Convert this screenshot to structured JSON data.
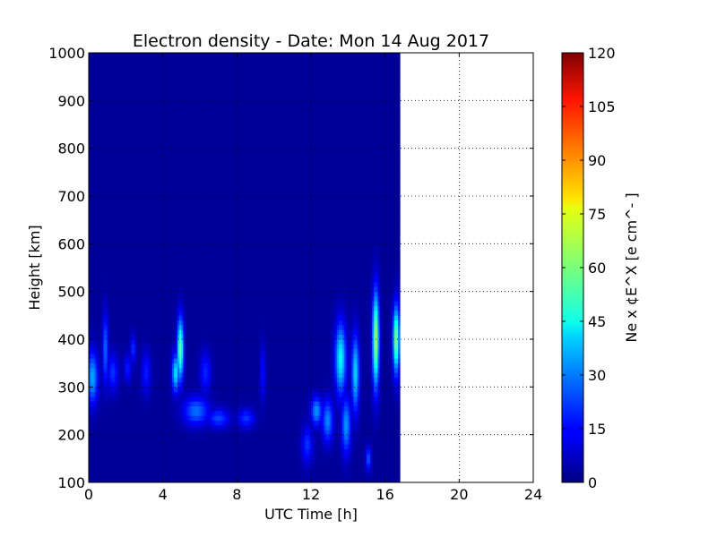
{
  "chart_data": {
    "type": "heatmap",
    "title": "Electron density - Date: Mon 14 Aug 2017",
    "xlabel": "UTC Time [h]",
    "ylabel": "Height [km]",
    "xlim": [
      0,
      24
    ],
    "ylim": [
      100,
      1000
    ],
    "x_ticks": [
      0,
      4,
      8,
      12,
      16,
      20,
      24
    ],
    "y_ticks": [
      100,
      200,
      300,
      400,
      500,
      600,
      700,
      800,
      900,
      1000
    ],
    "grid": true,
    "data_extent_x": [
      0,
      16.8
    ],
    "colorbar": {
      "label": "Ne x ¢E^X  [e cm^- ]",
      "range": [
        0,
        120
      ],
      "ticks": [
        0,
        15,
        30,
        45,
        60,
        75,
        90,
        105,
        120
      ],
      "colormap": "jet"
    },
    "features": [
      {
        "t": 0.2,
        "width": 0.6,
        "h": 320,
        "thickness": 110,
        "value": 32
      },
      {
        "t": 0.9,
        "width": 0.3,
        "h": 380,
        "thickness": 150,
        "value": 25
      },
      {
        "t": 1.3,
        "width": 0.6,
        "h": 330,
        "thickness": 80,
        "value": 18
      },
      {
        "t": 2.1,
        "width": 0.4,
        "h": 340,
        "thickness": 60,
        "value": 15
      },
      {
        "t": 2.4,
        "width": 0.3,
        "h": 380,
        "thickness": 60,
        "value": 18
      },
      {
        "t": 3.1,
        "width": 0.5,
        "h": 330,
        "thickness": 90,
        "value": 15
      },
      {
        "t": 4.7,
        "width": 0.4,
        "h": 330,
        "thickness": 80,
        "value": 40
      },
      {
        "t": 4.95,
        "width": 0.35,
        "h": 380,
        "thickness": 130,
        "value": 55
      },
      {
        "t": 5.8,
        "width": 1.4,
        "h": 250,
        "thickness": 60,
        "value": 25
      },
      {
        "t": 6.3,
        "width": 0.6,
        "h": 330,
        "thickness": 90,
        "value": 16
      },
      {
        "t": 7.0,
        "width": 1.2,
        "h": 235,
        "thickness": 40,
        "value": 20
      },
      {
        "t": 8.5,
        "width": 0.9,
        "h": 235,
        "thickness": 40,
        "value": 18
      },
      {
        "t": 9.4,
        "width": 0.3,
        "h": 330,
        "thickness": 120,
        "value": 14
      },
      {
        "t": 11.8,
        "width": 0.6,
        "h": 180,
        "thickness": 80,
        "value": 18
      },
      {
        "t": 12.3,
        "width": 0.6,
        "h": 250,
        "thickness": 60,
        "value": 30
      },
      {
        "t": 12.9,
        "width": 0.6,
        "h": 230,
        "thickness": 90,
        "value": 28
      },
      {
        "t": 13.6,
        "width": 0.6,
        "h": 360,
        "thickness": 150,
        "value": 42
      },
      {
        "t": 13.9,
        "width": 0.5,
        "h": 220,
        "thickness": 120,
        "value": 30
      },
      {
        "t": 14.4,
        "width": 0.4,
        "h": 330,
        "thickness": 160,
        "value": 38
      },
      {
        "t": 15.5,
        "width": 0.35,
        "h": 400,
        "thickness": 200,
        "value": 62
      },
      {
        "t": 16.6,
        "width": 0.35,
        "h": 400,
        "thickness": 140,
        "value": 58
      },
      {
        "t": 15.1,
        "width": 0.3,
        "h": 150,
        "thickness": 50,
        "value": 22
      }
    ]
  }
}
